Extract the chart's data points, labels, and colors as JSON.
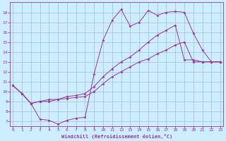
{
  "background_color": "#cceeff",
  "grid_color": "#aabbcc",
  "line_color": "#993399",
  "xlabel": "Windchill (Refroidissement éolien,°C)",
  "ylabel_ticks": [
    7,
    8,
    9,
    10,
    11,
    12,
    13,
    14,
    15,
    16,
    17,
    18
  ],
  "xlabel_ticks": [
    0,
    1,
    2,
    3,
    4,
    5,
    6,
    7,
    8,
    9,
    10,
    11,
    12,
    13,
    14,
    15,
    16,
    17,
    18,
    19,
    20,
    21,
    22,
    23
  ],
  "line1_x": [
    0,
    1,
    2,
    3,
    4,
    5,
    6,
    7,
    8,
    9,
    10,
    11,
    12,
    13,
    14,
    15,
    16,
    17,
    18,
    19,
    20,
    21,
    22,
    23
  ],
  "line1_y": [
    10.6,
    9.8,
    8.8,
    7.2,
    7.1,
    6.7,
    7.1,
    7.3,
    7.4,
    11.8,
    15.2,
    17.2,
    18.3,
    16.6,
    17.0,
    18.2,
    17.7,
    18.0,
    18.1,
    18.0,
    15.9,
    14.2,
    13.0,
    13.0
  ],
  "line2_x": [
    0,
    1,
    2,
    3,
    4,
    5,
    6,
    7,
    8,
    9,
    10,
    11,
    12,
    13,
    14,
    15,
    16,
    17,
    18,
    19,
    20,
    21,
    22,
    23
  ],
  "line2_y": [
    10.6,
    9.8,
    8.8,
    9.0,
    9.2,
    9.2,
    9.5,
    9.6,
    9.8,
    10.5,
    11.5,
    12.3,
    13.0,
    13.5,
    14.2,
    15.0,
    15.7,
    16.2,
    16.7,
    13.2,
    13.2,
    13.0,
    13.0,
    13.0
  ],
  "line3_x": [
    0,
    1,
    2,
    3,
    4,
    5,
    6,
    7,
    8,
    9,
    10,
    11,
    12,
    13,
    14,
    15,
    16,
    17,
    18,
    19,
    20,
    21,
    22,
    23
  ],
  "line3_y": [
    10.6,
    9.8,
    8.8,
    9.0,
    9.0,
    9.2,
    9.3,
    9.4,
    9.5,
    10.0,
    10.8,
    11.5,
    12.0,
    12.5,
    13.0,
    13.3,
    13.8,
    14.2,
    14.7,
    15.0,
    13.0,
    13.0,
    13.0,
    13.0
  ],
  "ylim": [
    6.5,
    19.0
  ],
  "xlim": [
    -0.3,
    23.3
  ]
}
